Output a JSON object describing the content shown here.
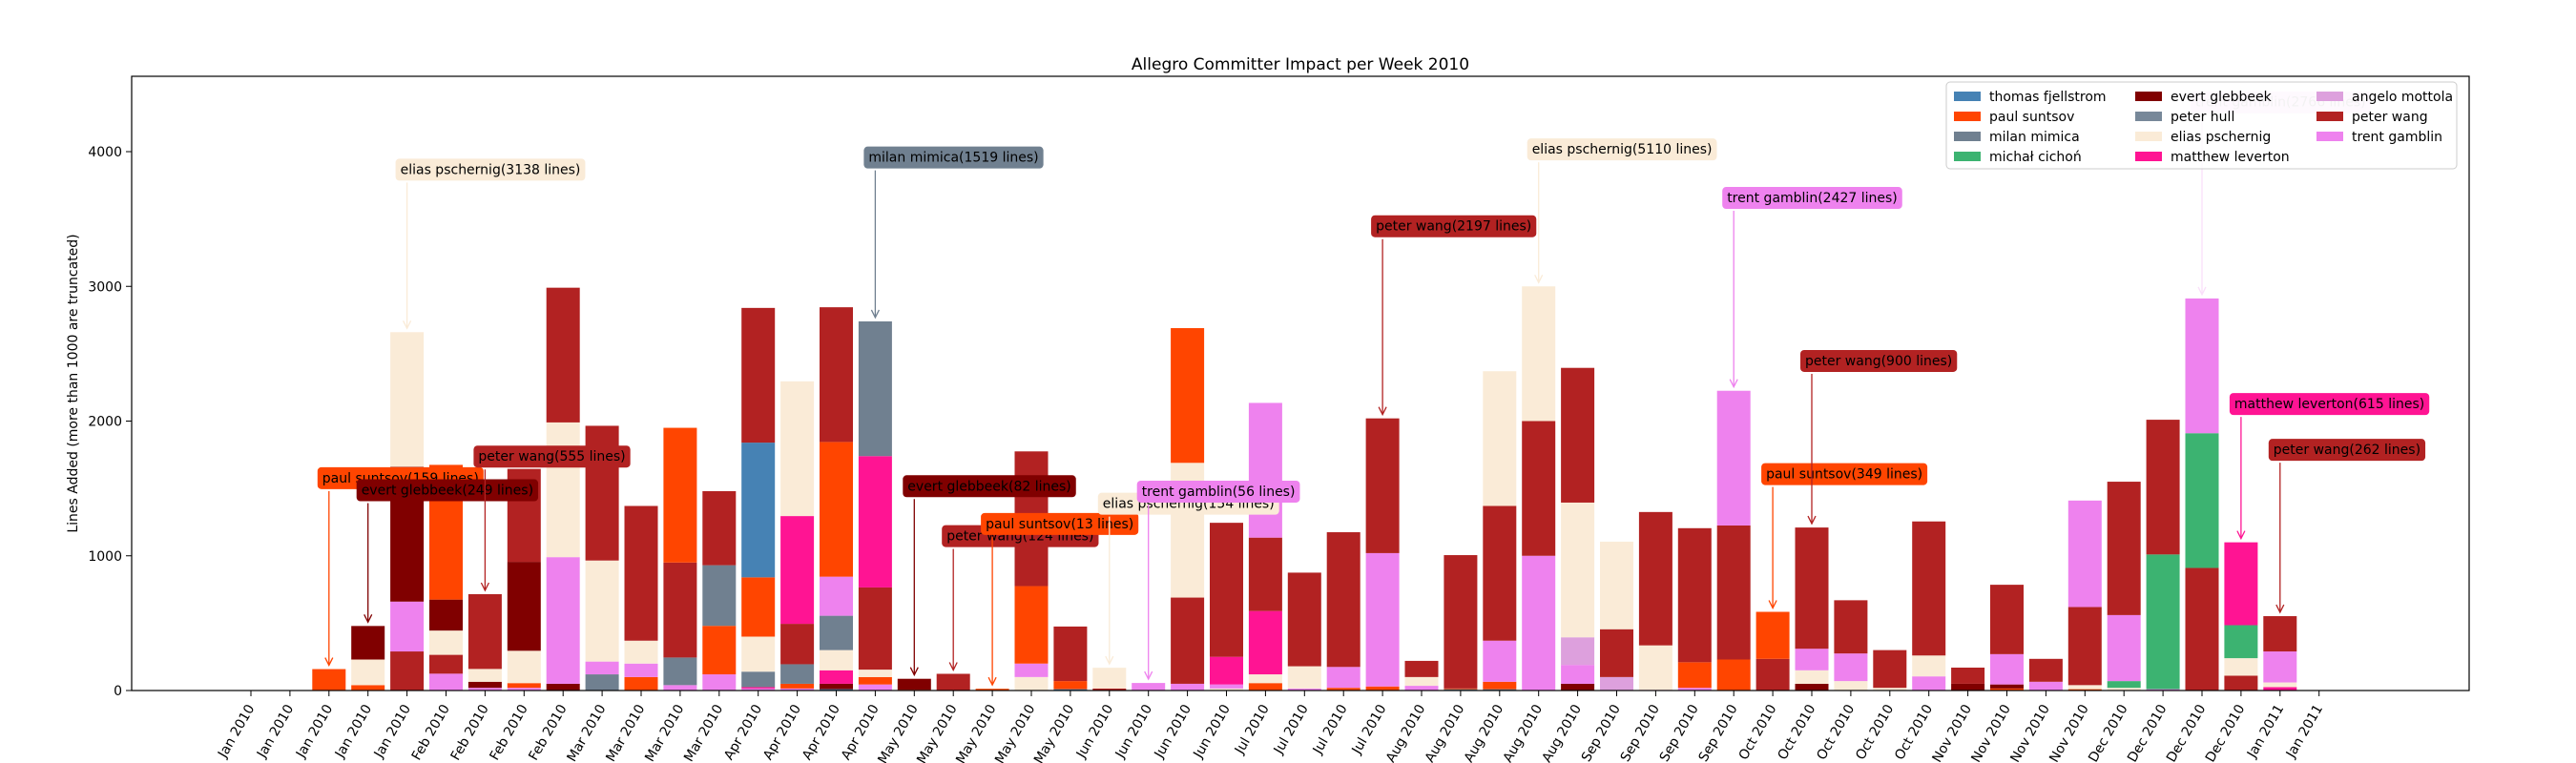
{
  "chart_data": {
    "type": "bar",
    "stacked": true,
    "title": "Allegro Committer Impact per Week 2010",
    "xlabel": "",
    "ylabel": "Lines Added (more than 1000 are truncated)",
    "ylim": [
      0,
      4500
    ],
    "yticks": [
      0,
      1000,
      2000,
      3000,
      4000
    ],
    "legend_position": "top-right",
    "grid": false,
    "authors": [
      {
        "name": "thomas fjellstrom",
        "color": "#4682b4"
      },
      {
        "name": "paul suntsov",
        "color": "#ff4500"
      },
      {
        "name": "milan mimica",
        "color": "#708090"
      },
      {
        "name": "michał cichoń",
        "color": "#3cb371"
      },
      {
        "name": "evert glebbeek",
        "color": "#800000"
      },
      {
        "name": "peter hull",
        "color": "#778899"
      },
      {
        "name": "elias pschernig",
        "color": "#faebd7"
      },
      {
        "name": "matthew leverton",
        "color": "#ff1493"
      },
      {
        "name": "angelo mottola",
        "color": "#dda0dd"
      },
      {
        "name": "peter wang",
        "color": "#b22222"
      },
      {
        "name": "trent gamblin",
        "color": "#ee82ee"
      }
    ],
    "categories": [
      "Jan 2010",
      "Jan 2010",
      "Jan 2010",
      "Jan 2010",
      "Jan 2010",
      "Feb 2010",
      "Feb 2010",
      "Feb 2010",
      "Feb 2010",
      "Mar 2010",
      "Mar 2010",
      "Mar 2010",
      "Mar 2010",
      "Apr 2010",
      "Apr 2010",
      "Apr 2010",
      "Apr 2010",
      "May 2010",
      "May 2010",
      "May 2010",
      "May 2010",
      "May 2010",
      "Jun 2010",
      "Jun 2010",
      "Jun 2010",
      "Jun 2010",
      "Jul 2010",
      "Jul 2010",
      "Jul 2010",
      "Jul 2010",
      "Aug 2010",
      "Aug 2010",
      "Aug 2010",
      "Aug 2010",
      "Aug 2010",
      "Sep 2010",
      "Sep 2010",
      "Sep 2010",
      "Sep 2010",
      "Oct 2010",
      "Oct 2010",
      "Oct 2010",
      "Oct 2010",
      "Oct 2010",
      "Nov 2010",
      "Nov 2010",
      "Nov 2010",
      "Nov 2010",
      "Dec 2010",
      "Dec 2010",
      "Dec 2010",
      "Dec 2010",
      "Jan 2011",
      "Jan 2011"
    ],
    "bars": [
      [],
      [],
      [
        [
          "paul suntsov",
          159
        ]
      ],
      [
        [
          "paul suntsov",
          40
        ],
        [
          "elias pschernig",
          190
        ],
        [
          "evert glebbeek",
          249
        ]
      ],
      [
        [
          "peter wang",
          290
        ],
        [
          "trent gamblin",
          370
        ],
        [
          "evert glebbeek",
          1000
        ],
        [
          "elias pschernig",
          1000
        ]
      ],
      [
        [
          "trent gamblin",
          125
        ],
        [
          "peter wang",
          140
        ],
        [
          "elias pschernig",
          180
        ],
        [
          "evert glebbeek",
          230
        ],
        [
          "paul suntsov",
          1000
        ]
      ],
      [
        [
          "trent gamblin",
          20
        ],
        [
          "evert glebbeek",
          45
        ],
        [
          "elias pschernig",
          95
        ],
        [
          "peter wang",
          555
        ]
      ],
      [
        [
          "trent gamblin",
          20
        ],
        [
          "paul suntsov",
          35
        ],
        [
          "elias pschernig",
          240
        ],
        [
          "evert glebbeek",
          660
        ],
        [
          "peter wang",
          690
        ]
      ],
      [
        [
          "evert glebbeek",
          50
        ],
        [
          "trent gamblin",
          940
        ],
        [
          "elias pschernig",
          1000
        ],
        [
          "peter wang",
          1000
        ]
      ],
      [
        [
          "milan mimica",
          120
        ],
        [
          "trent gamblin",
          95
        ],
        [
          "elias pschernig",
          750
        ],
        [
          "peter wang",
          1000
        ]
      ],
      [
        [
          "paul suntsov",
          100
        ],
        [
          "trent gamblin",
          100
        ],
        [
          "elias pschernig",
          170
        ],
        [
          "peter wang",
          1000
        ]
      ],
      [
        [
          "trent gamblin",
          40
        ],
        [
          "milan mimica",
          205
        ],
        [
          "peter wang",
          705
        ],
        [
          "paul suntsov",
          1000
        ]
      ],
      [
        [
          "trent gamblin",
          120
        ],
        [
          "paul suntsov",
          360
        ],
        [
          "milan mimica",
          450
        ],
        [
          "peter wang",
          550
        ]
      ],
      [
        [
          "trent gamblin",
          15
        ],
        [
          "matthew leverton",
          10
        ],
        [
          "milan mimica",
          115
        ],
        [
          "elias pschernig",
          260
        ],
        [
          "paul suntsov",
          440
        ],
        [
          "thomas fjellstrom",
          1000
        ],
        [
          "peter wang",
          1000
        ]
      ],
      [
        [
          "trent gamblin",
          15
        ],
        [
          "paul suntsov",
          35
        ],
        [
          "milan mimica",
          145
        ],
        [
          "peter wang",
          300
        ],
        [
          "matthew leverton",
          800
        ],
        [
          "elias pschernig",
          1000
        ]
      ],
      [
        [
          "thomas fjellstrom",
          10
        ],
        [
          "evert glebbeek",
          40
        ],
        [
          "matthew leverton",
          100
        ],
        [
          "elias pschernig",
          150
        ],
        [
          "milan mimica",
          255
        ],
        [
          "trent gamblin",
          290
        ],
        [
          "paul suntsov",
          1000
        ],
        [
          "peter wang",
          1000
        ]
      ],
      [
        [
          "trent gamblin",
          45
        ],
        [
          "paul suntsov",
          55
        ],
        [
          "elias pschernig",
          55
        ],
        [
          "peter wang",
          610
        ],
        [
          "matthew leverton",
          975
        ],
        [
          "milan mimica",
          1000
        ]
      ],
      [
        [
          "paul suntsov",
          5
        ],
        [
          "evert glebbeek",
          82
        ]
      ],
      [
        [
          "peter wang",
          124
        ]
      ],
      [
        [
          "paul suntsov",
          13
        ]
      ],
      [
        [
          "elias pschernig",
          100
        ],
        [
          "trent gamblin",
          100
        ],
        [
          "paul suntsov",
          575
        ],
        [
          "peter wang",
          1000
        ]
      ],
      [
        [
          "thomas fjellstrom",
          10
        ],
        [
          "paul suntsov",
          60
        ],
        [
          "peter wang",
          405
        ]
      ],
      [
        [
          "peter wang",
          15
        ],
        [
          "elias pschernig",
          154
        ]
      ],
      [
        [
          "trent gamblin",
          56
        ]
      ],
      [
        [
          "trent gamblin",
          50
        ],
        [
          "peter wang",
          640
        ],
        [
          "elias pschernig",
          1000
        ],
        [
          "paul suntsov",
          1000
        ]
      ],
      [
        [
          "elias pschernig",
          15
        ],
        [
          "trent gamblin",
          30
        ],
        [
          "matthew leverton",
          205
        ],
        [
          "peter wang",
          995
        ]
      ],
      [
        [
          "paul suntsov",
          55
        ],
        [
          "elias pschernig",
          65
        ],
        [
          "matthew leverton",
          470
        ],
        [
          "peter wang",
          545
        ],
        [
          "trent gamblin",
          1000
        ]
      ],
      [
        [
          "trent gamblin",
          15
        ],
        [
          "elias pschernig",
          165
        ],
        [
          "peter wang",
          695
        ]
      ],
      [
        [
          "paul suntsov",
          20
        ],
        [
          "trent gamblin",
          155
        ],
        [
          "peter wang",
          1000
        ]
      ],
      [
        [
          "paul suntsov",
          30
        ],
        [
          "trent gamblin",
          990
        ],
        [
          "peter wang",
          1000
        ]
      ],
      [
        [
          "trent gamblin",
          35
        ],
        [
          "elias pschernig",
          65
        ],
        [
          "peter wang",
          120
        ]
      ],
      [
        [
          "milan mimica",
          10
        ],
        [
          "paul suntsov",
          5
        ],
        [
          "peter wang",
          990
        ]
      ],
      [
        [
          "milan mimica",
          10
        ],
        [
          "paul suntsov",
          55
        ],
        [
          "trent gamblin",
          305
        ],
        [
          "peter wang",
          1000
        ],
        [
          "elias pschernig",
          1000
        ]
      ],
      [
        [
          "trent gamblin",
          1000
        ],
        [
          "peter wang",
          1000
        ],
        [
          "elias pschernig",
          1000
        ]
      ],
      [
        [
          "evert glebbeek",
          50
        ],
        [
          "trent gamblin",
          140
        ],
        [
          "angelo mottola",
          205
        ],
        [
          "elias pschernig",
          1000
        ],
        [
          "peter wang",
          1000
        ]
      ],
      [
        [
          "angelo mottola",
          100
        ],
        [
          "peter wang",
          355
        ],
        [
          "elias pschernig",
          650
        ]
      ],
      [
        [
          "trent gamblin",
          5
        ],
        [
          "elias pschernig",
          330
        ],
        [
          "peter wang",
          990
        ]
      ],
      [
        [
          "trent gamblin",
          20
        ],
        [
          "paul suntsov",
          190
        ],
        [
          "peter wang",
          995
        ]
      ],
      [
        [
          "paul suntsov",
          230
        ],
        [
          "peter wang",
          995
        ],
        [
          "trent gamblin",
          1000
        ]
      ],
      [
        [
          "peter wang",
          235
        ],
        [
          "paul suntsov",
          349
        ]
      ],
      [
        [
          "evert glebbeek",
          50
        ],
        [
          "elias pschernig",
          100
        ],
        [
          "trent gamblin",
          160
        ],
        [
          "peter wang",
          900
        ]
      ],
      [
        [
          "elias pschernig",
          70
        ],
        [
          "trent gamblin",
          205
        ],
        [
          "peter wang",
          395
        ]
      ],
      [
        [
          "elias pschernig",
          20
        ],
        [
          "peter wang",
          280
        ]
      ],
      [
        [
          "trent gamblin",
          105
        ],
        [
          "elias pschernig",
          155
        ],
        [
          "peter wang",
          995
        ]
      ],
      [
        [
          "evert glebbeek",
          50
        ],
        [
          "peter wang",
          120
        ]
      ],
      [
        [
          "paul suntsov",
          15
        ],
        [
          "evert glebbeek",
          30
        ],
        [
          "trent gamblin",
          225
        ],
        [
          "peter wang",
          515
        ]
      ],
      [
        [
          "trent gamblin",
          65
        ],
        [
          "peter wang",
          170
        ]
      ],
      [
        [
          "paul suntsov",
          10
        ],
        [
          "elias pschernig",
          30
        ],
        [
          "peter wang",
          580
        ],
        [
          "trent gamblin",
          790
        ]
      ],
      [
        [
          "elias pschernig",
          20
        ],
        [
          "michał cichoń",
          50
        ],
        [
          "trent gamblin",
          490
        ],
        [
          "peter wang",
          990
        ]
      ],
      [
        [
          "trent gamblin",
          10
        ],
        [
          "michał cichoń",
          1000
        ],
        [
          "peter wang",
          1000
        ]
      ],
      [
        [
          "peter wang",
          910
        ],
        [
          "michał cichoń",
          1000
        ],
        [
          "trent gamblin",
          1000
        ]
      ],
      [
        [
          "peter wang",
          110
        ],
        [
          "elias pschernig",
          130
        ],
        [
          "michał cichoń",
          245
        ],
        [
          "matthew leverton",
          615
        ]
      ],
      [
        [
          "matthew leverton",
          25
        ],
        [
          "elias pschernig",
          35
        ],
        [
          "trent gamblin",
          230
        ],
        [
          "peter wang",
          262
        ]
      ],
      []
    ],
    "annotations": [
      {
        "text": "paul suntsov(159 lines)",
        "author": "paul suntsov",
        "bar": 2,
        "label_y": 1580
      },
      {
        "text": "evert glebbeek(249 lines)",
        "author": "evert glebbeek",
        "bar": 3,
        "label_y": 1490
      },
      {
        "text": "elias pschernig(3138 lines)",
        "author": "elias pschernig",
        "bar": 4,
        "label_y": 3870
      },
      {
        "text": "peter wang(555 lines)",
        "author": "peter wang",
        "bar": 6,
        "label_y": 1740
      },
      {
        "text": "milan mimica(1519 lines)",
        "author": "milan mimica",
        "bar": 16,
        "label_y": 3960
      },
      {
        "text": "evert glebbeek(82 lines)",
        "author": "evert glebbeek",
        "bar": 17,
        "label_y": 1520
      },
      {
        "text": "peter wang(124 lines)",
        "author": "peter wang",
        "bar": 18,
        "label_y": 1150
      },
      {
        "text": "paul suntsov(13 lines)",
        "author": "paul suntsov",
        "bar": 19,
        "label_y": 1240
      },
      {
        "text": "elias pschernig(154 lines)",
        "author": "elias pschernig",
        "bar": 22,
        "label_y": 1390
      },
      {
        "text": "trent gamblin(56 lines)",
        "author": "trent gamblin",
        "bar": 23,
        "label_y": 1480
      },
      {
        "text": "peter wang(2197 lines)",
        "author": "peter wang",
        "bar": 29,
        "label_y": 3450
      },
      {
        "text": "elias pschernig(5110 lines)",
        "author": "elias pschernig",
        "bar": 33,
        "label_y": 4020
      },
      {
        "text": "trent gamblin(2427 lines)",
        "author": "trent gamblin",
        "bar": 38,
        "label_y": 3660
      },
      {
        "text": "paul suntsov(349 lines)",
        "author": "paul suntsov",
        "bar": 39,
        "label_y": 1610
      },
      {
        "text": "peter wang(900 lines)",
        "author": "peter wang",
        "bar": 40,
        "label_y": 2450
      },
      {
        "text": "trent gamblin(2766 lines)",
        "author": "trent gamblin",
        "bar": 50,
        "label_y": 4370,
        "faded": true
      },
      {
        "text": "matthew leverton(615 lines)",
        "author": "matthew leverton",
        "bar": 51,
        "label_y": 2130
      },
      {
        "text": "peter wang(262 lines)",
        "author": "peter wang",
        "bar": 52,
        "label_y": 1790
      }
    ]
  }
}
